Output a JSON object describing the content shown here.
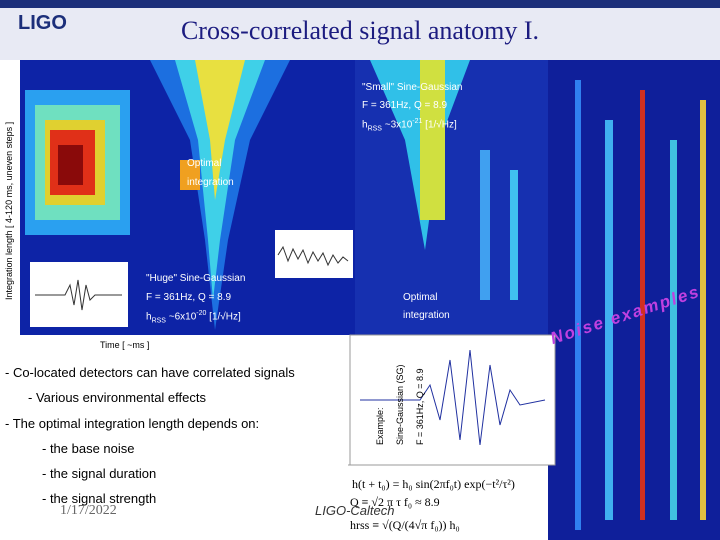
{
  "header": {
    "logo": "LIGO",
    "title": "Cross-correlated signal anatomy I."
  },
  "figure": {
    "y_axis_label": "Integration length [ 4-120 ms, uneven steps ]",
    "x_axis_label": "Time [ ~ms ]",
    "small": {
      "name": "\"Small\" Sine-Gaussian",
      "params": "F = 361Hz, Q = 8.9",
      "h": "h",
      "sub": "RSS",
      "amp": " ~3x10",
      "sup": "-21",
      "unit": " [1/√Hz]"
    },
    "optimal_left": [
      "Optimal",
      "integration"
    ],
    "huge": {
      "name": "\"Huge\" Sine-Gaussian",
      "params": "F = 361Hz, Q = 8.9",
      "h": "h",
      "sub": "RSS",
      "amp": " ~6x10",
      "sup": "-20",
      "unit": " [1/√Hz]"
    },
    "optimal_right": [
      "Optimal",
      "integration"
    ],
    "noise": "Noise examples"
  },
  "bullets": [
    "- Co-located detectors can have correlated signals",
    "- Various environmental effects",
    "- The optimal integration length depends on:",
    "- the base noise",
    "- the signal duration",
    "- the signal strength"
  ],
  "example": {
    "labels": [
      "Example:",
      "Sine-Gaussian (SG)",
      "F = 361Hz, Q = 8.9"
    ],
    "formulas": [
      "h(t + t₀) = h₀ sin(2πf₀t) exp(−t²/τ²)",
      "Q ≡ √2 π τ f₀ ≈ 8.9",
      "hrss ≡ √(Q/(4√π f₀)) h₀"
    ]
  },
  "footer": {
    "date": "1/17/2022",
    "org": "LIGO-Caltech"
  }
}
